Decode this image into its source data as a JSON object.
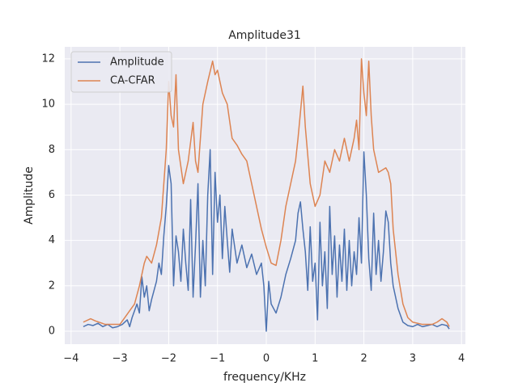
{
  "chart_data": {
    "type": "line",
    "title": "Amplitude31",
    "xlabel": "frequency/KHz",
    "ylabel": "Amplitude",
    "xlim": [
      -4.13,
      4.08
    ],
    "ylim": [
      -0.57,
      12.53
    ],
    "xticks": [
      {
        "value": -4,
        "label": "−4"
      },
      {
        "value": -3,
        "label": "−3"
      },
      {
        "value": -2,
        "label": "−2"
      },
      {
        "value": -1,
        "label": "−1"
      },
      0,
      1,
      2,
      3,
      4
    ],
    "yticks": [
      0,
      2,
      4,
      6,
      8,
      10,
      12
    ],
    "grid": true,
    "legend": "upper-left",
    "series": [
      {
        "name": "Amplitude",
        "color": "#4c72b0",
        "x": [
          -3.75,
          -3.65,
          -3.55,
          -3.45,
          -3.35,
          -3.25,
          -3.15,
          -3.05,
          -2.95,
          -2.85,
          -2.8,
          -2.75,
          -2.65,
          -2.6,
          -2.55,
          -2.5,
          -2.45,
          -2.4,
          -2.35,
          -2.3,
          -2.25,
          -2.2,
          -2.15,
          -2.1,
          -2.05,
          -2.0,
          -1.95,
          -1.9,
          -1.85,
          -1.8,
          -1.75,
          -1.7,
          -1.65,
          -1.6,
          -1.55,
          -1.5,
          -1.45,
          -1.4,
          -1.35,
          -1.3,
          -1.25,
          -1.2,
          -1.15,
          -1.1,
          -1.05,
          -1.0,
          -0.95,
          -0.9,
          -0.85,
          -0.8,
          -0.75,
          -0.7,
          -0.6,
          -0.5,
          -0.4,
          -0.3,
          -0.2,
          -0.1,
          -0.05,
          0.0,
          0.05,
          0.1,
          0.2,
          0.3,
          0.4,
          0.5,
          0.6,
          0.65,
          0.7,
          0.75,
          0.8,
          0.85,
          0.9,
          0.95,
          1.0,
          1.05,
          1.1,
          1.15,
          1.2,
          1.25,
          1.3,
          1.35,
          1.4,
          1.45,
          1.5,
          1.55,
          1.6,
          1.65,
          1.7,
          1.75,
          1.8,
          1.85,
          1.9,
          1.95,
          2.0,
          2.05,
          2.1,
          2.15,
          2.2,
          2.25,
          2.3,
          2.35,
          2.4,
          2.45,
          2.5,
          2.55,
          2.6,
          2.7,
          2.8,
          2.9,
          3.0,
          3.1,
          3.2,
          3.3,
          3.4,
          3.5,
          3.6,
          3.7,
          3.75
        ],
        "values": [
          0.2,
          0.3,
          0.25,
          0.35,
          0.2,
          0.3,
          0.15,
          0.2,
          0.3,
          0.5,
          0.2,
          0.6,
          1.2,
          0.8,
          2.4,
          1.5,
          2.0,
          0.9,
          1.4,
          1.8,
          2.2,
          3.0,
          2.5,
          4.2,
          5.5,
          7.3,
          6.5,
          2.0,
          4.2,
          3.5,
          2.2,
          4.5,
          3.0,
          1.8,
          5.8,
          1.5,
          3.8,
          6.5,
          1.5,
          4.0,
          2.0,
          6.0,
          8.0,
          2.5,
          7.0,
          4.8,
          6.0,
          3.2,
          5.5,
          4.0,
          2.6,
          4.5,
          3.0,
          3.8,
          2.8,
          3.4,
          2.5,
          3.0,
          2.0,
          0.0,
          2.2,
          1.2,
          0.8,
          1.5,
          2.5,
          3.2,
          4.0,
          5.2,
          5.7,
          4.5,
          3.5,
          1.8,
          4.6,
          2.2,
          3.0,
          0.5,
          4.8,
          2.0,
          3.5,
          1.0,
          5.5,
          2.5,
          4.2,
          1.5,
          3.8,
          2.2,
          4.5,
          1.8,
          4.0,
          2.0,
          3.5,
          2.5,
          5.0,
          3.0,
          7.9,
          6.0,
          3.2,
          1.8,
          5.2,
          2.5,
          4.0,
          2.2,
          3.5,
          5.3,
          4.8,
          3.0,
          2.0,
          1.0,
          0.4,
          0.25,
          0.2,
          0.3,
          0.2,
          0.25,
          0.3,
          0.2,
          0.3,
          0.25,
          0.1
        ]
      },
      {
        "name": "CA-CFAR",
        "color": "#dd8452",
        "x": [
          -3.75,
          -3.6,
          -3.5,
          -3.3,
          -3.0,
          -2.9,
          -2.8,
          -2.7,
          -2.6,
          -2.5,
          -2.45,
          -2.35,
          -2.25,
          -2.15,
          -2.05,
          -2.0,
          -1.95,
          -1.9,
          -1.85,
          -1.8,
          -1.7,
          -1.6,
          -1.5,
          -1.45,
          -1.4,
          -1.3,
          -1.2,
          -1.1,
          -1.05,
          -1.0,
          -0.9,
          -0.8,
          -0.7,
          -0.6,
          -0.5,
          -0.4,
          -0.3,
          -0.2,
          -0.1,
          0.0,
          0.1,
          0.2,
          0.3,
          0.4,
          0.5,
          0.6,
          0.65,
          0.75,
          0.8,
          0.9,
          1.0,
          1.1,
          1.2,
          1.3,
          1.4,
          1.5,
          1.6,
          1.7,
          1.8,
          1.85,
          1.9,
          1.95,
          2.0,
          2.05,
          2.1,
          2.15,
          2.2,
          2.3,
          2.45,
          2.5,
          2.55,
          2.6,
          2.7,
          2.8,
          2.9,
          3.0,
          3.2,
          3.4,
          3.5,
          3.6,
          3.7,
          3.75
        ],
        "values": [
          0.4,
          0.55,
          0.45,
          0.3,
          0.3,
          0.6,
          0.9,
          1.2,
          2.0,
          3.0,
          3.3,
          3.0,
          3.8,
          5.0,
          8.0,
          11.0,
          9.5,
          9.0,
          11.3,
          8.0,
          6.5,
          7.5,
          9.2,
          7.5,
          7.0,
          10.0,
          11.0,
          11.9,
          11.3,
          11.5,
          10.5,
          10.0,
          8.5,
          8.2,
          7.8,
          7.5,
          6.5,
          5.5,
          4.5,
          3.7,
          3.0,
          2.9,
          4.0,
          5.5,
          6.5,
          7.5,
          8.5,
          10.8,
          9.0,
          6.5,
          5.5,
          6.0,
          7.5,
          7.0,
          8.0,
          7.5,
          8.5,
          7.5,
          8.5,
          9.3,
          8.0,
          12.0,
          10.5,
          9.5,
          11.9,
          9.5,
          8.0,
          7.0,
          7.2,
          7.0,
          6.5,
          4.5,
          2.5,
          1.2,
          0.6,
          0.4,
          0.3,
          0.3,
          0.4,
          0.55,
          0.4,
          0.2
        ]
      }
    ]
  }
}
